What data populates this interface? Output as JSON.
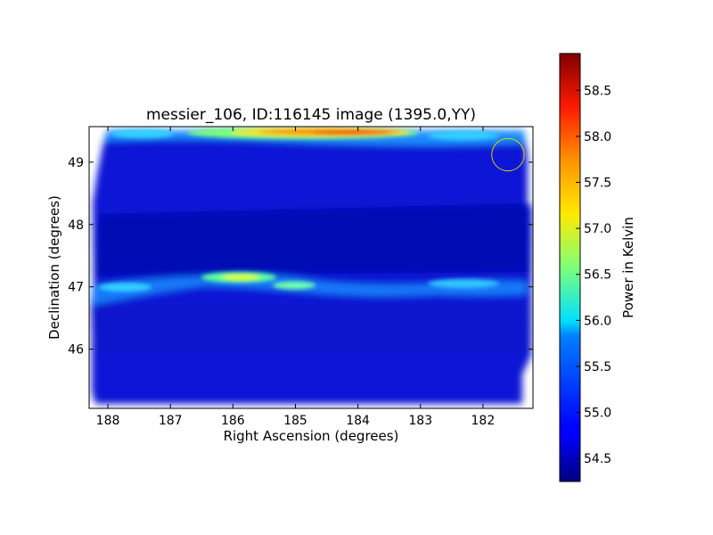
{
  "chart_data": {
    "type": "heatmap",
    "title": "messier_106, ID:116145 image (1395.0,YY)",
    "xlabel": "Right Ascension (degrees)",
    "ylabel": "Declination (degrees)",
    "colorbar_label": "Power in Kelvin",
    "colormap": "jet",
    "xlim": [
      188.3,
      181.2
    ],
    "ylim": [
      45.05,
      49.57
    ],
    "x_ticks": [
      {
        "value": 188,
        "label": "188"
      },
      {
        "value": 187,
        "label": "187"
      },
      {
        "value": 186,
        "label": "186"
      },
      {
        "value": 185,
        "label": "185"
      },
      {
        "value": 184,
        "label": "184"
      },
      {
        "value": 183,
        "label": "183"
      },
      {
        "value": 182,
        "label": "182"
      }
    ],
    "y_ticks": [
      {
        "value": 46,
        "label": "46"
      },
      {
        "value": 47,
        "label": "47"
      },
      {
        "value": 48,
        "label": "48"
      },
      {
        "value": 49,
        "label": "49"
      }
    ],
    "color_range": [
      54.25,
      58.9
    ],
    "color_ticks": [
      {
        "value": 54.5,
        "label": "54.5"
      },
      {
        "value": 55.0,
        "label": "55.0"
      },
      {
        "value": 55.5,
        "label": "55.5"
      },
      {
        "value": 56.0,
        "label": "56.0"
      },
      {
        "value": 56.5,
        "label": "56.5"
      },
      {
        "value": 57.0,
        "label": "57.0"
      },
      {
        "value": 57.5,
        "label": "57.5"
      },
      {
        "value": 58.0,
        "label": "58.0"
      },
      {
        "value": 58.5,
        "label": "58.5"
      }
    ],
    "background_level": 54.7,
    "features": [
      {
        "ra": 184.5,
        "dec": 49.46,
        "level": 58.9,
        "description": "bright ridge at top edge"
      },
      {
        "ra": 185.8,
        "dec": 47.14,
        "level": 56.8,
        "description": "horizontal band"
      },
      {
        "ra": 184.8,
        "dec": 47.0,
        "level": 56.3,
        "description": "horizontal band"
      }
    ],
    "marker_circle": {
      "ra": 181.6,
      "dec": 49.12,
      "radius_deg": 0.37,
      "color": "#d4d400"
    },
    "grid": false
  }
}
